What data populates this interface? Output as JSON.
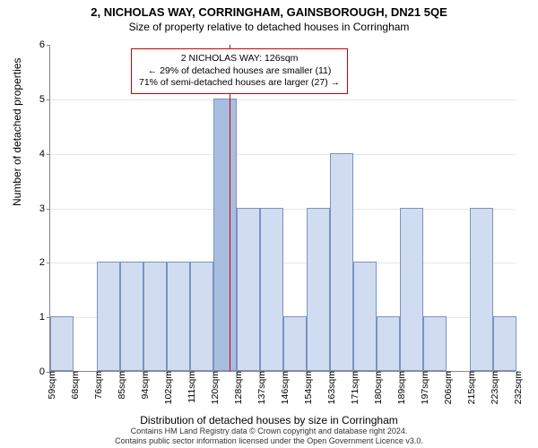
{
  "title_line1": "2, NICHOLAS WAY, CORRINGHAM, GAINSBOROUGH, DN21 5QE",
  "title_line2": "Size of property relative to detached houses in Corringham",
  "ylabel": "Number of detached properties",
  "xlabel": "Distribution of detached houses by size in Corringham",
  "footer_line1": "Contains HM Land Registry data © Crown copyright and database right 2024.",
  "footer_line2": "Contains public sector information licensed under the Open Government Licence v3.0.",
  "chart": {
    "type": "histogram",
    "ylim": [
      0,
      6
    ],
    "ytick_step": 1,
    "background_color": "#ffffff",
    "grid_color": "#e6e6e6",
    "bar_fill": "#d0dcf0",
    "bar_fill_highlight": "#a8bde0",
    "bar_stroke": "#7a93c4",
    "marker_color": "#d00000",
    "xtick_labels": [
      "59sqm",
      "68sqm",
      "76sqm",
      "85sqm",
      "94sqm",
      "102sqm",
      "111sqm",
      "120sqm",
      "128sqm",
      "137sqm",
      "146sqm",
      "154sqm",
      "163sqm",
      "171sqm",
      "180sqm",
      "189sqm",
      "197sqm",
      "206sqm",
      "215sqm",
      "223sqm",
      "232sqm"
    ],
    "bars": [
      {
        "v": 1,
        "hl": false
      },
      {
        "v": 0,
        "hl": false
      },
      {
        "v": 2,
        "hl": false
      },
      {
        "v": 2,
        "hl": false
      },
      {
        "v": 2,
        "hl": false
      },
      {
        "v": 2,
        "hl": false
      },
      {
        "v": 2,
        "hl": false
      },
      {
        "v": 5,
        "hl": true
      },
      {
        "v": 3,
        "hl": false
      },
      {
        "v": 3,
        "hl": false
      },
      {
        "v": 1,
        "hl": false
      },
      {
        "v": 3,
        "hl": false
      },
      {
        "v": 4,
        "hl": false
      },
      {
        "v": 2,
        "hl": false
      },
      {
        "v": 1,
        "hl": false
      },
      {
        "v": 3,
        "hl": false
      },
      {
        "v": 1,
        "hl": false
      },
      {
        "v": 0,
        "hl": false
      },
      {
        "v": 3,
        "hl": false
      },
      {
        "v": 1,
        "hl": false
      }
    ],
    "marker_position": 7.7,
    "font_size_title": 13,
    "font_size_subtitle": 12,
    "font_size_axis": 12,
    "font_size_tick": 11
  },
  "info_box": {
    "line1": "2 NICHOLAS WAY: 126sqm",
    "line2": "← 29% of detached houses are smaller (11)",
    "line3": "71% of semi-detached houses are larger (27) →"
  }
}
